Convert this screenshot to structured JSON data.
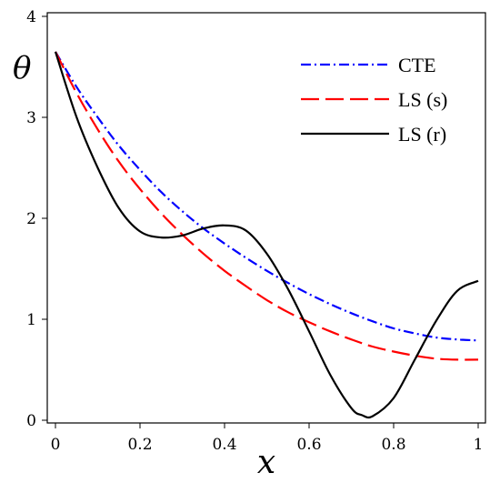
{
  "chart_data": {
    "type": "line",
    "title": "",
    "xlabel": "x",
    "ylabel": "θ",
    "xlim": [
      0,
      1
    ],
    "ylim": [
      0,
      4
    ],
    "xticks": [
      {
        "value": 0,
        "label": "0"
      },
      {
        "value": 0.2,
        "label": "0.2"
      },
      {
        "value": 0.4,
        "label": "0.4"
      },
      {
        "value": 0.6,
        "label": "0.6"
      },
      {
        "value": 0.8,
        "label": "0.8"
      },
      {
        "value": 1,
        "label": "1"
      }
    ],
    "yticks": [
      {
        "value": 0,
        "label": "0"
      },
      {
        "value": 1,
        "label": "1"
      },
      {
        "value": 2,
        "label": "2"
      },
      {
        "value": 3,
        "label": "3"
      },
      {
        "value": 4,
        "label": "4"
      }
    ],
    "grid": false,
    "legend_position": "top-right",
    "series": [
      {
        "name": "CTE",
        "color": "#0000ff",
        "dash": "dash-dot",
        "x": [
          0,
          0.05,
          0.1,
          0.15,
          0.2,
          0.25,
          0.3,
          0.35,
          0.4,
          0.45,
          0.5,
          0.55,
          0.6,
          0.65,
          0.7,
          0.75,
          0.8,
          0.85,
          0.9,
          0.95,
          1
        ],
        "y": [
          3.65,
          3.3,
          3.0,
          2.72,
          2.48,
          2.26,
          2.07,
          1.9,
          1.75,
          1.61,
          1.48,
          1.36,
          1.25,
          1.15,
          1.06,
          0.98,
          0.91,
          0.86,
          0.82,
          0.8,
          0.79
        ]
      },
      {
        "name": "LS (s)",
        "color": "#ff0000",
        "dash": "long-dash",
        "x": [
          0,
          0.05,
          0.1,
          0.15,
          0.2,
          0.25,
          0.3,
          0.35,
          0.4,
          0.45,
          0.5,
          0.55,
          0.6,
          0.65,
          0.7,
          0.75,
          0.8,
          0.85,
          0.9,
          0.95,
          1
        ],
        "y": [
          3.65,
          3.24,
          2.88,
          2.56,
          2.29,
          2.05,
          1.84,
          1.65,
          1.48,
          1.33,
          1.19,
          1.07,
          0.97,
          0.88,
          0.8,
          0.73,
          0.68,
          0.64,
          0.61,
          0.6,
          0.6
        ]
      },
      {
        "name": "LS (r)",
        "color": "#000000",
        "dash": "solid",
        "x": [
          0,
          0.05,
          0.1,
          0.15,
          0.2,
          0.25,
          0.3,
          0.35,
          0.4,
          0.45,
          0.5,
          0.55,
          0.6,
          0.65,
          0.7,
          0.725,
          0.75,
          0.8,
          0.85,
          0.9,
          0.95,
          1
        ],
        "y": [
          3.65,
          3.0,
          2.5,
          2.1,
          1.87,
          1.81,
          1.83,
          1.9,
          1.93,
          1.88,
          1.65,
          1.3,
          0.88,
          0.45,
          0.12,
          0.05,
          0.04,
          0.22,
          0.6,
          0.98,
          1.28,
          1.38
        ]
      }
    ]
  }
}
